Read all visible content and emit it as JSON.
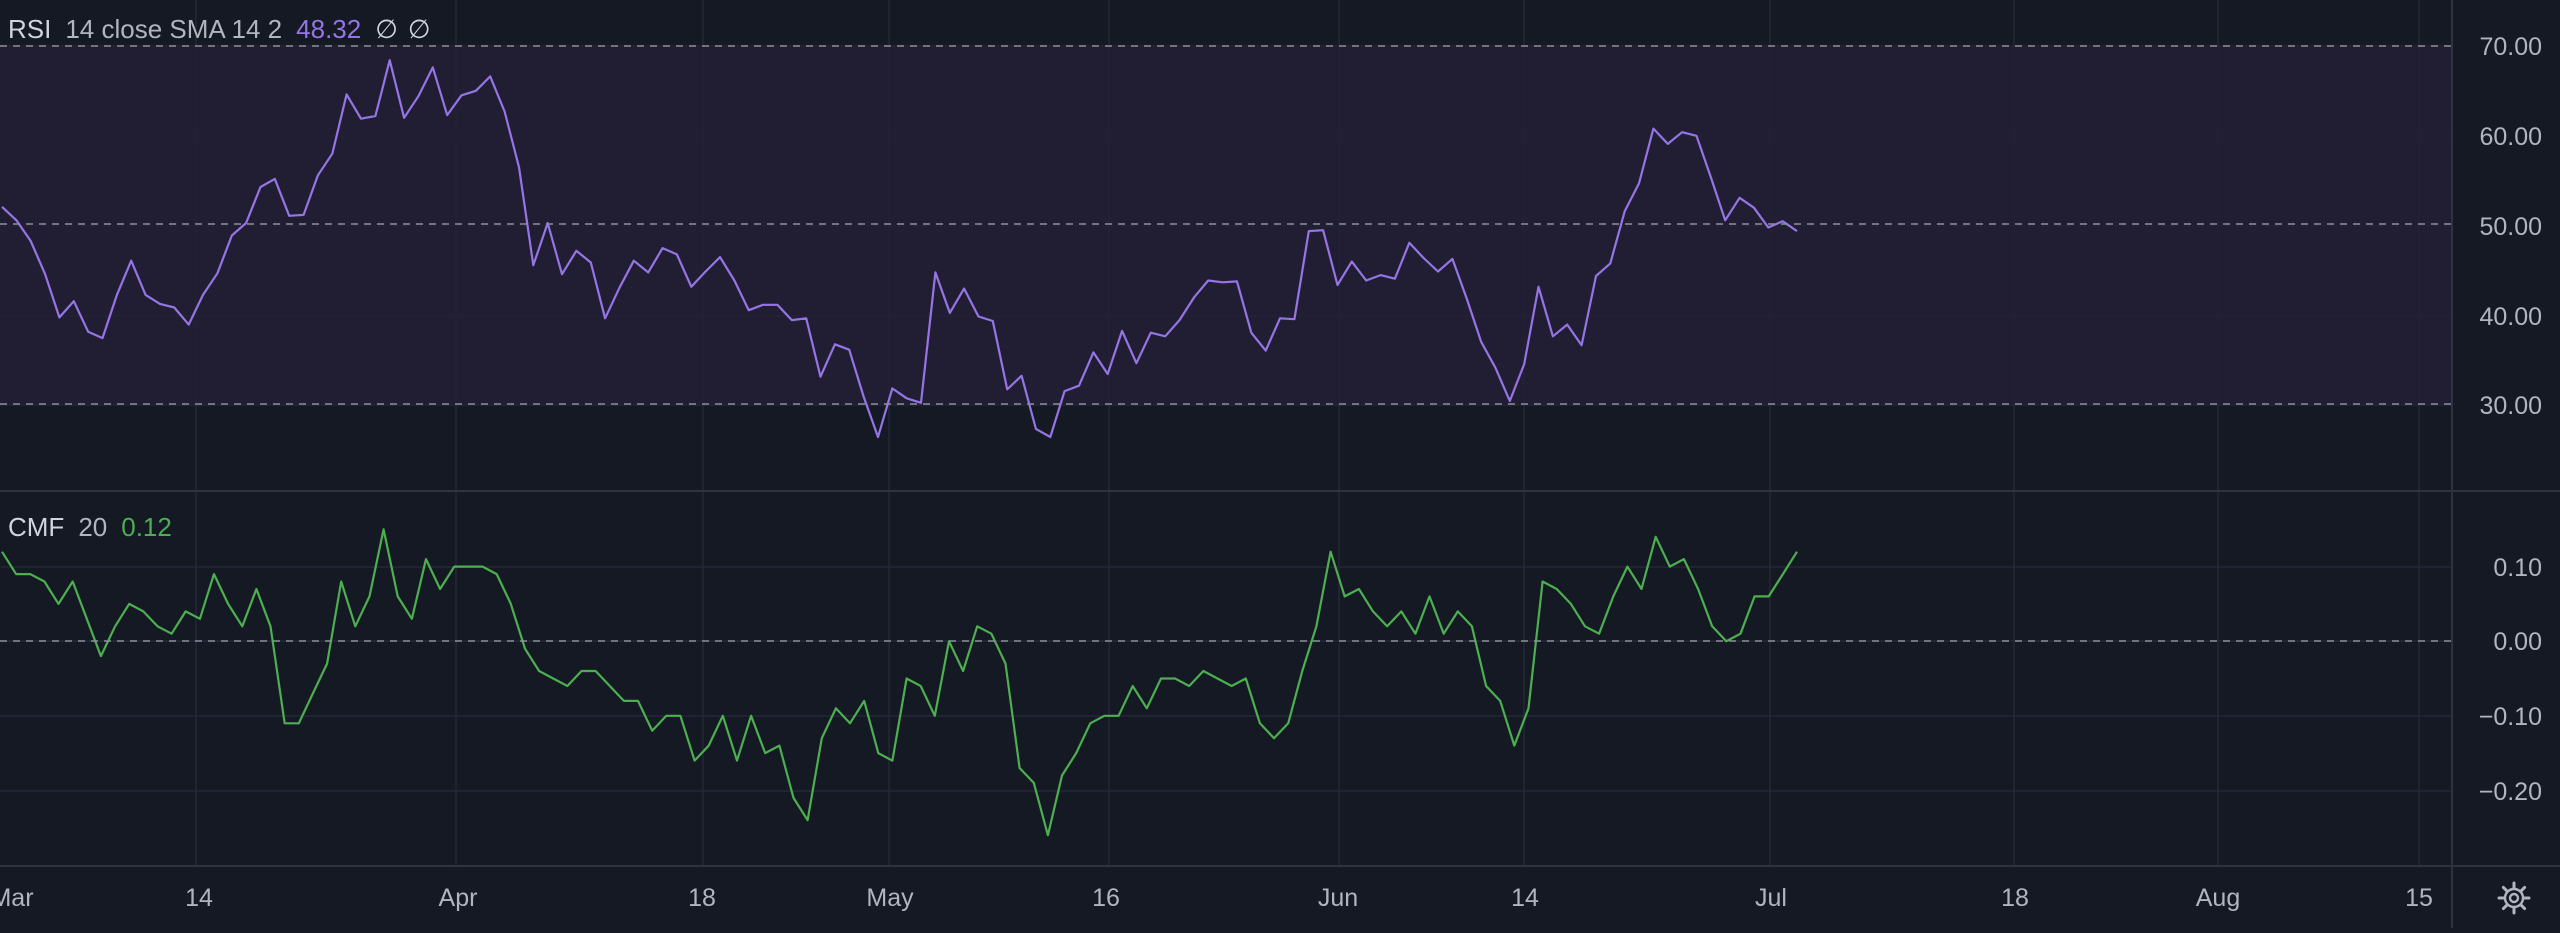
{
  "colors": {
    "background": "#151924",
    "rsi_band": "#221f35",
    "grid": "#242837",
    "separator": "#2f3340",
    "rsi_line": "#9575e6",
    "cmf_line": "#4caf50",
    "dashed": "#8c8f9a",
    "axis_text": "#b2b5be"
  },
  "rsi_legend": {
    "name": "RSI",
    "params": "14 close SMA 14 2",
    "value": "48.32",
    "na1": "∅",
    "na2": "∅"
  },
  "cmf_legend": {
    "name": "CMF",
    "params": "20",
    "value": "0.12"
  },
  "time_axis": {
    "labels": [
      "Mar",
      "14",
      "Apr",
      "18",
      "May",
      "16",
      "Jun",
      "14",
      "Jul",
      "18",
      "Aug",
      "15"
    ]
  },
  "settings_icon": "gear-icon",
  "chart_data": [
    {
      "type": "line",
      "title": "RSI 14 close SMA 14 2",
      "ylim": [
        19.5,
        74
      ],
      "y_ticks": [
        "70.00",
        "60.00",
        "50.00",
        "40.00",
        "30.00"
      ],
      "band": [
        30,
        70
      ],
      "dashed_levels": [
        70,
        50,
        30
      ],
      "grid": true,
      "series": [
        {
          "name": "RSI",
          "color": "#9575e6",
          "values": [
            51.0,
            49.5,
            47.2,
            43.5,
            38.7,
            40.5,
            37.1,
            36.4,
            41.2,
            45.0,
            41.2,
            40.2,
            39.8,
            37.9,
            41.2,
            43.6,
            47.8,
            49.2,
            53.2,
            54.1,
            50.0,
            50.1,
            54.5,
            56.9,
            63.5,
            60.8,
            61.1,
            67.3,
            60.9,
            63.3,
            66.5,
            61.2,
            63.4,
            63.9,
            65.5,
            61.6,
            55.4,
            44.5,
            49.2,
            43.5,
            46.1,
            44.8,
            38.6,
            42.0,
            45.0,
            43.7,
            46.4,
            45.7,
            42.1,
            43.8,
            45.4,
            42.8,
            39.5,
            40.1,
            40.1,
            38.4,
            38.6,
            32.1,
            35.7,
            35.1,
            29.9,
            25.4,
            30.8,
            29.7,
            29.2,
            43.7,
            39.2,
            41.9,
            38.8,
            38.3,
            30.7,
            32.2,
            26.3,
            25.4,
            30.5,
            31.1,
            34.8,
            32.4,
            37.2,
            33.6,
            37.0,
            36.6,
            38.4,
            40.9,
            42.8,
            42.6,
            42.7,
            37.0,
            35.0,
            38.6,
            38.5,
            48.3,
            48.4,
            42.3,
            44.9,
            42.8,
            43.4,
            43.0,
            47.0,
            45.3,
            43.8,
            45.2,
            40.8,
            36.0,
            33.1,
            29.4,
            33.5,
            42.1,
            36.6,
            37.9,
            35.6,
            43.3,
            44.7,
            50.5,
            53.6,
            59.7,
            58.0,
            59.3,
            58.9,
            54.3,
            49.5,
            52.0,
            50.9,
            48.7,
            49.4,
            48.3
          ]
        }
      ]
    },
    {
      "type": "line",
      "title": "CMF 20",
      "ylim": [
        -0.3,
        0.2
      ],
      "y_ticks": [
        "0.10",
        "0.00",
        "−0.10",
        "−0.20"
      ],
      "dashed_levels": [
        0
      ],
      "grid": true,
      "series": [
        {
          "name": "CMF",
          "color": "#4caf50",
          "values": [
            0.12,
            0.09,
            0.09,
            0.08,
            0.05,
            0.08,
            0.03,
            -0.02,
            0.02,
            0.05,
            0.04,
            0.02,
            0.01,
            0.04,
            0.03,
            0.09,
            0.05,
            0.02,
            0.07,
            0.02,
            -0.11,
            -0.11,
            -0.07,
            -0.03,
            0.08,
            0.02,
            0.06,
            0.15,
            0.06,
            0.03,
            0.11,
            0.07,
            0.1,
            0.1,
            0.1,
            0.09,
            0.05,
            -0.01,
            -0.04,
            -0.05,
            -0.06,
            -0.04,
            -0.04,
            -0.06,
            -0.08,
            -0.08,
            -0.12,
            -0.1,
            -0.1,
            -0.16,
            -0.14,
            -0.1,
            -0.16,
            -0.1,
            -0.15,
            -0.14,
            -0.21,
            -0.24,
            -0.13,
            -0.09,
            -0.11,
            -0.08,
            -0.15,
            -0.16,
            -0.05,
            -0.06,
            -0.1,
            0.0,
            -0.04,
            0.02,
            0.01,
            -0.03,
            -0.17,
            -0.19,
            -0.26,
            -0.18,
            -0.15,
            -0.11,
            -0.1,
            -0.1,
            -0.06,
            -0.09,
            -0.05,
            -0.05,
            -0.06,
            -0.04,
            -0.05,
            -0.06,
            -0.05,
            -0.11,
            -0.13,
            -0.11,
            -0.04,
            0.02,
            0.12,
            0.06,
            0.07,
            0.04,
            0.02,
            0.04,
            0.01,
            0.06,
            0.01,
            0.04,
            0.02,
            -0.06,
            -0.08,
            -0.14,
            -0.09,
            0.08,
            0.07,
            0.05,
            0.02,
            0.01,
            0.06,
            0.1,
            0.07,
            0.14,
            0.1,
            0.11,
            0.07,
            0.02,
            0.0,
            0.01,
            0.06,
            0.06,
            0.09,
            0.12
          ]
        }
      ]
    }
  ]
}
